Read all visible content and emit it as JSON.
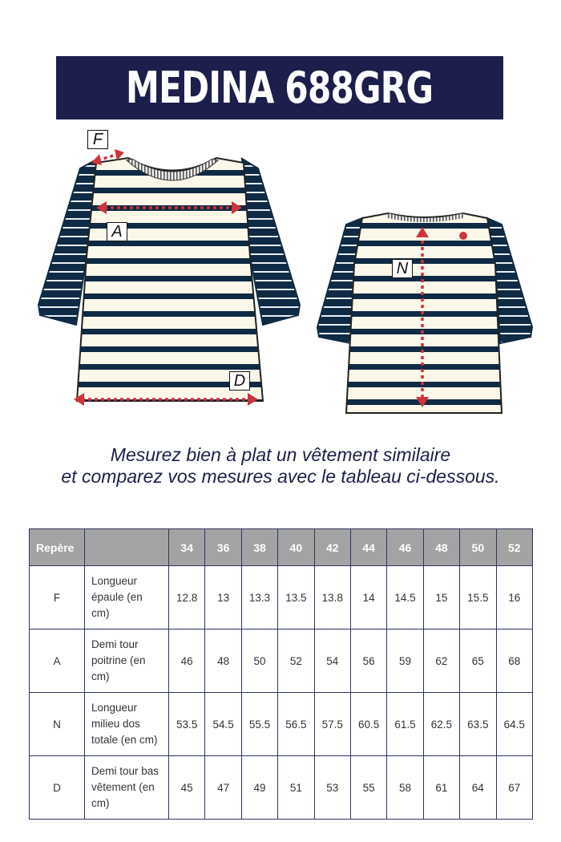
{
  "title": "MEDINA 688GRG",
  "diagram": {
    "labels": {
      "F": "F",
      "A": "A",
      "N": "N",
      "D": "D"
    },
    "colors": {
      "navy": "#0f2a44",
      "cream": "#fbf8ea",
      "arrow": "#d0323a"
    }
  },
  "instructions": {
    "line1": "Mesurez bien à plat un vêtement similaire",
    "line2": "et comparez vos mesures avec le tableau ci-dessous."
  },
  "table": {
    "header": {
      "repere": "Repère",
      "desc": "",
      "sizes": [
        "34",
        "36",
        "38",
        "40",
        "42",
        "44",
        "46",
        "48",
        "50",
        "52"
      ]
    },
    "rows": [
      {
        "code": "F",
        "desc": "Longueur épaule (en cm)",
        "values": [
          "12.8",
          "13",
          "13.3",
          "13.5",
          "13.8",
          "14",
          "14.5",
          "15",
          "15.5",
          "16"
        ]
      },
      {
        "code": "A",
        "desc": "Demi tour poitrine (en cm)",
        "values": [
          "46",
          "48",
          "50",
          "52",
          "54",
          "56",
          "59",
          "62",
          "65",
          "68"
        ]
      },
      {
        "code": "N",
        "desc": "Longueur milieu dos totale (en cm)",
        "values": [
          "53.5",
          "54.5",
          "55.5",
          "56.5",
          "57.5",
          "60.5",
          "61.5",
          "62.5",
          "63.5",
          "64.5"
        ]
      },
      {
        "code": "D",
        "desc": "Demi tour bas vêtement (en cm)",
        "values": [
          "45",
          "47",
          "49",
          "51",
          "53",
          "55",
          "58",
          "61",
          "64",
          "67"
        ]
      }
    ]
  }
}
